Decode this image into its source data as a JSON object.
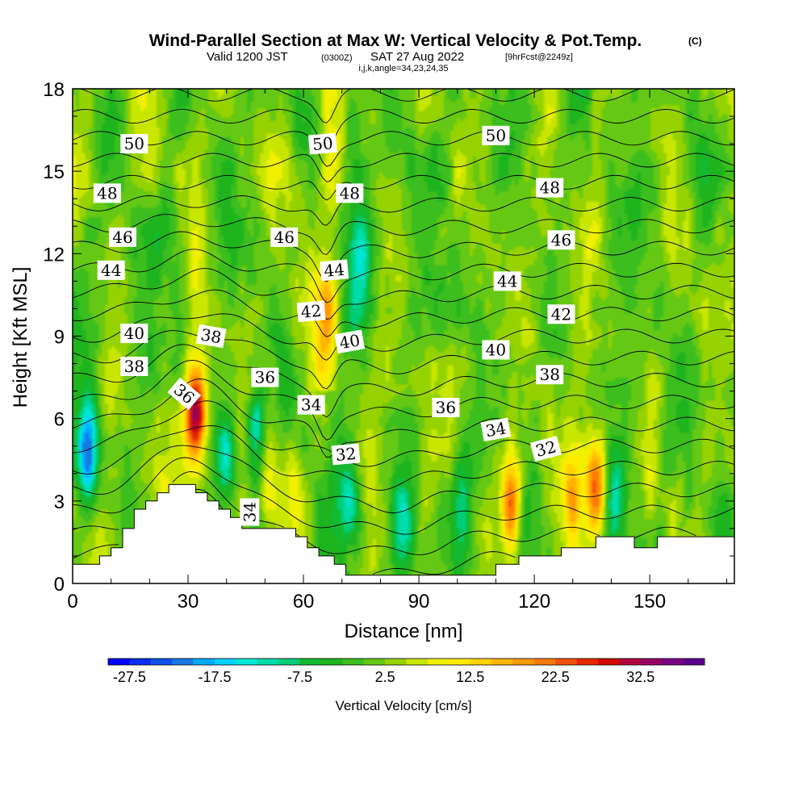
{
  "figure": {
    "title": "Wind-Parallel Section at Max W: Vertical Velocity & Pot.Temp.",
    "title_mark": "(C)",
    "subtitle_prefix": "Valid 1200 JST",
    "subtitle_zulu": "(0300Z)",
    "subtitle_date": "SAT 27 Aug 2022",
    "subtitle_fcst": "[9hrFcst@2249z]",
    "subtitle2": "i,j,k,angle=34,23,24,35"
  },
  "chart_data": {
    "type": "heatmap",
    "xlabel": "Distance [nm]",
    "ylabel": "Height [Kft MSL]",
    "xlim": [
      0,
      172
    ],
    "ylim": [
      0,
      18
    ],
    "x_ticks": [
      0,
      30,
      60,
      90,
      120,
      150
    ],
    "y_ticks": [
      0,
      3,
      6,
      9,
      12,
      15,
      18
    ],
    "colorbar": {
      "label": "Vertical Velocity [cm/s]",
      "min": -30,
      "max": 40,
      "step": 2.5,
      "tick_labels": [
        "-27.5",
        "-17.5",
        "-7.5",
        "2.5",
        "12.5",
        "22.5",
        "32.5"
      ],
      "colors": [
        "#0000ff",
        "#0b2cf5",
        "#1150ea",
        "#1878e4",
        "#00aaff",
        "#00d2ff",
        "#00e6d6",
        "#00dcaa",
        "#00cd78",
        "#14b932",
        "#1eb41e",
        "#3cbe1e",
        "#64c814",
        "#96d200",
        "#c8e600",
        "#f0f000",
        "#ffea00",
        "#ffd200",
        "#ffb400",
        "#ff9900",
        "#ff7a00",
        "#f55000",
        "#e62800",
        "#d20a00",
        "#b4003c",
        "#960064",
        "#780082",
        "#5a008c"
      ]
    },
    "updrafts": [
      {
        "x": 32,
        "z": 6.2,
        "w": 38
      },
      {
        "x": 136,
        "z": 3.6,
        "w": 28
      },
      {
        "x": 114,
        "z": 2.9,
        "w": 26
      },
      {
        "x": 130,
        "z": 3.0,
        "w": 18
      },
      {
        "x": 66,
        "z": 9.5,
        "w": 10
      },
      {
        "x": 50,
        "z": 4.5,
        "w": 14
      },
      {
        "x": 57,
        "z": 3.5,
        "w": 12
      },
      {
        "x": 150,
        "z": 3.2,
        "w": 8
      },
      {
        "x": 160,
        "z": 10.0,
        "w": 6
      }
    ],
    "downdrafts": [
      {
        "x": 4,
        "z": 4.8,
        "w": -20
      },
      {
        "x": 48,
        "z": 5.5,
        "w": -16
      },
      {
        "x": 72,
        "z": 3.0,
        "w": -13
      },
      {
        "x": 101,
        "z": 2.8,
        "w": -9
      },
      {
        "x": 86,
        "z": 2.0,
        "w": -8
      },
      {
        "x": 142,
        "z": 3.2,
        "w": -8
      },
      {
        "x": 40,
        "z": 4.5,
        "w": -9
      },
      {
        "x": 75,
        "z": 12.0,
        "w": -6
      }
    ],
    "terrain": [
      [
        0,
        0.7
      ],
      [
        7,
        0.7
      ],
      [
        7,
        1.0
      ],
      [
        10,
        1.0
      ],
      [
        10,
        1.3
      ],
      [
        13,
        1.3
      ],
      [
        13,
        2.0
      ],
      [
        16,
        2.0
      ],
      [
        16,
        2.7
      ],
      [
        19,
        2.7
      ],
      [
        19,
        3.0
      ],
      [
        22,
        3.0
      ],
      [
        22,
        3.3
      ],
      [
        25,
        3.3
      ],
      [
        25,
        3.6
      ],
      [
        32,
        3.6
      ],
      [
        32,
        3.3
      ],
      [
        35,
        3.3
      ],
      [
        35,
        3.0
      ],
      [
        38,
        3.0
      ],
      [
        38,
        2.7
      ],
      [
        41,
        2.7
      ],
      [
        41,
        2.4
      ],
      [
        44,
        2.4
      ],
      [
        44,
        2.0
      ],
      [
        58,
        2.0
      ],
      [
        58,
        1.7
      ],
      [
        61,
        1.7
      ],
      [
        61,
        1.3
      ],
      [
        64,
        1.3
      ],
      [
        64,
        1.0
      ],
      [
        68,
        1.0
      ],
      [
        68,
        0.7
      ],
      [
        71,
        0.7
      ],
      [
        71,
        0.3
      ],
      [
        110,
        0.3
      ],
      [
        110,
        0.7
      ],
      [
        116,
        0.7
      ],
      [
        116,
        1.0
      ],
      [
        127,
        1.0
      ],
      [
        127,
        1.3
      ],
      [
        136,
        1.3
      ],
      [
        136,
        1.7
      ],
      [
        146,
        1.7
      ],
      [
        146,
        1.3
      ],
      [
        152,
        1.3
      ],
      [
        152,
        1.7
      ],
      [
        172,
        1.7
      ]
    ],
    "theta_levels": [
      31,
      32,
      33,
      34,
      35,
      36,
      37,
      38,
      39,
      40,
      41,
      42,
      43,
      44,
      45,
      46,
      47,
      48,
      49,
      50,
      51,
      52
    ],
    "theta_labels": [
      {
        "text": "50",
        "x": 16,
        "z": 16.0,
        "angle": 0
      },
      {
        "text": "50",
        "x": 65,
        "z": 16.0,
        "angle": -5
      },
      {
        "text": "50",
        "x": 110,
        "z": 16.3,
        "angle": 0
      },
      {
        "text": "48",
        "x": 9,
        "z": 14.2,
        "angle": 0
      },
      {
        "text": "48",
        "x": 72,
        "z": 14.2,
        "angle": 0
      },
      {
        "text": "48",
        "x": 124,
        "z": 14.4,
        "angle": 0
      },
      {
        "text": "46",
        "x": 13,
        "z": 12.6,
        "angle": 0
      },
      {
        "text": "46",
        "x": 55,
        "z": 12.6,
        "angle": 0
      },
      {
        "text": "46",
        "x": 127,
        "z": 12.5,
        "angle": 0
      },
      {
        "text": "44",
        "x": 10,
        "z": 11.4,
        "angle": 0
      },
      {
        "text": "44",
        "x": 68,
        "z": 11.4,
        "angle": -5
      },
      {
        "text": "44",
        "x": 113,
        "z": 11.0,
        "angle": 0
      },
      {
        "text": "42",
        "x": 62,
        "z": 9.9,
        "angle": -5
      },
      {
        "text": "42",
        "x": 127,
        "z": 9.8,
        "angle": 0
      },
      {
        "text": "40",
        "x": 16,
        "z": 9.1,
        "angle": 0
      },
      {
        "text": "40",
        "x": 72,
        "z": 8.8,
        "angle": -10
      },
      {
        "text": "40",
        "x": 110,
        "z": 8.5,
        "angle": 0
      },
      {
        "text": "38",
        "x": 36,
        "z": 9.0,
        "angle": 10
      },
      {
        "text": "38",
        "x": 16,
        "z": 7.9,
        "angle": 0
      },
      {
        "text": "38",
        "x": 124,
        "z": 7.6,
        "angle": 0
      },
      {
        "text": "36",
        "x": 29,
        "z": 6.9,
        "angle": 40
      },
      {
        "text": "36",
        "x": 50,
        "z": 7.5,
        "angle": 0
      },
      {
        "text": "36",
        "x": 97,
        "z": 6.4,
        "angle": 0
      },
      {
        "text": "34",
        "x": 62,
        "z": 6.5,
        "angle": 0
      },
      {
        "text": "34",
        "x": 110,
        "z": 5.6,
        "angle": -10
      },
      {
        "text": "34",
        "x": 46,
        "z": 2.6,
        "angle": -90
      },
      {
        "text": "32",
        "x": 71,
        "z": 4.7,
        "angle": -5
      },
      {
        "text": "32",
        "x": 123,
        "z": 4.9,
        "angle": -15
      }
    ]
  }
}
